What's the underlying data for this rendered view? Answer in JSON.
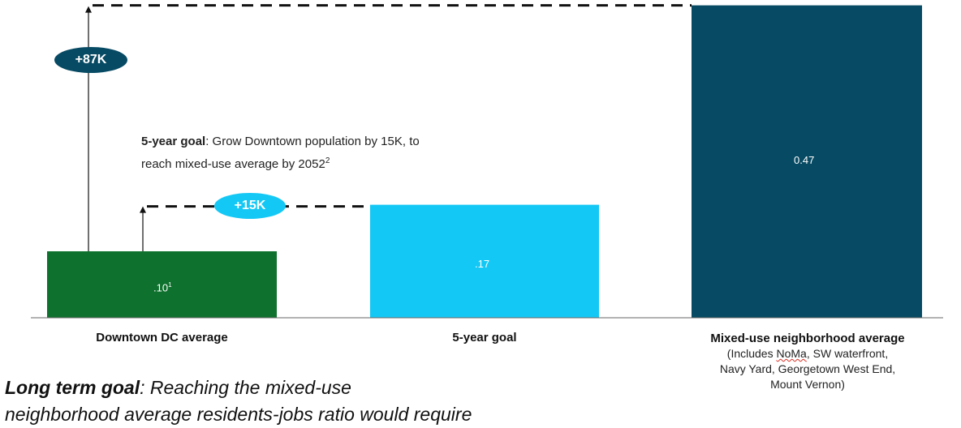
{
  "chart_data": {
    "type": "bar",
    "categories": [
      "Downtown DC average",
      "5-year goal",
      "Mixed-use neighborhood average"
    ],
    "values": [
      0.1,
      0.17,
      0.47
    ],
    "value_labels": [
      ".10",
      ".17",
      "0.47"
    ],
    "value_label_footnotes": [
      "1",
      "",
      ""
    ],
    "category_notes": [
      "",
      "",
      "(Includes NoMa, SW waterfront, Navy Yard, Georgetown West End, Mount Vernon)"
    ],
    "colors": [
      "#0e712d",
      "#14c8f5",
      "#074a63"
    ],
    "annotations": {
      "badge_large": "+87K",
      "badge_small": "+15K",
      "badge_large_color": "#074a63",
      "badge_small_color": "#14c8f5",
      "five_year_goal_title": "5-year goal",
      "five_year_goal_text": ": Grow Downtown population by 15K, to",
      "five_year_goal_text2": "reach mixed-use average by 2052",
      "five_year_goal_footnote": "2"
    }
  },
  "footer": {
    "long_term_title": "Long term goal",
    "long_term_text": ": Reaching the mixed-use",
    "long_term_text2": "neighborhood average residents-jobs ratio would require"
  }
}
